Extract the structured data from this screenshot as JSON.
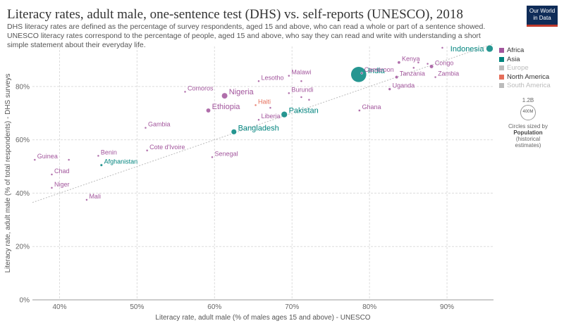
{
  "header": {
    "title": "Literacy rates, adult male, one-sentence test (DHS) vs. self-reports (UNESCO), 2018",
    "subtitle": "DHS literacy rates are defined as the percentage of survey respondents, aged 15 and above, who can read a whole or part of a sentence showed. UNESCO literacy rates correspond to the percentage of people, aged 15 and above, who say they can read and write with understanding a short simple statement about their everyday life.",
    "logo_line1": "Our World",
    "logo_line2": "in Data"
  },
  "legend": {
    "entries": [
      {
        "name": "Africa",
        "color": "#a2559c",
        "dimmed": false
      },
      {
        "name": "Asia",
        "color": "#00847e",
        "dimmed": false
      },
      {
        "name": "Europe",
        "color": "#bbbbbb",
        "dimmed": true
      },
      {
        "name": "North America",
        "color": "#e56e5a",
        "dimmed": false
      },
      {
        "name": "South America",
        "color": "#bbbbbb",
        "dimmed": true
      }
    ],
    "size_value": "1.2B",
    "size_small": "400M",
    "size_note_1": "Circles sized by",
    "size_note_2": "Population",
    "size_note_3": "(historical",
    "size_note_4": "estimates)"
  },
  "chart_data": {
    "type": "scatter",
    "xlabel": "Literacy rate, adult male (% of males ages 15 and above) - UNESCO",
    "ylabel": "Literacy rate, adult male (% of total respondents) - DHS surveys",
    "xlim": [
      36.5,
      96
    ],
    "ylim": [
      0,
      95
    ],
    "x_ticks": [
      "40%",
      "50%",
      "60%",
      "70%",
      "80%",
      "90%"
    ],
    "x_tick_values": [
      40,
      50,
      60,
      70,
      80,
      90
    ],
    "y_ticks": [
      "0%",
      "20%",
      "40%",
      "60%",
      "80%"
    ],
    "y_tick_values": [
      0,
      20,
      40,
      60,
      80
    ],
    "grid": true,
    "legend_position": "right",
    "trendline": {
      "x": [
        36.5,
        96
      ],
      "y": [
        36.5,
        96
      ]
    },
    "colors": {
      "Africa": "#a2559c",
      "Asia": "#00847e",
      "North America": "#e56e5a"
    },
    "points": [
      {
        "label": "Indonesia",
        "x": 95.5,
        "y": 94.2,
        "region": "Asia",
        "pop": 267
      },
      {
        "label": "India",
        "x": 78.6,
        "y": 84.5,
        "region": "Asia",
        "pop": 1353
      },
      {
        "label": "Kenya",
        "x": 83.8,
        "y": 89.0,
        "region": "Africa",
        "pop": 51
      },
      {
        "label": "Congo",
        "x": 88.0,
        "y": 87.5,
        "region": "Africa",
        "pop": 84
      },
      {
        "label": "Cameroon",
        "x": 79.0,
        "y": 85.0,
        "region": "Africa",
        "pop": 25
      },
      {
        "label": "Tanzania",
        "x": 83.5,
        "y": 83.5,
        "region": "Africa",
        "pop": 56
      },
      {
        "label": "Zambia",
        "x": 88.5,
        "y": 83.5,
        "region": "Africa",
        "pop": 17
      },
      {
        "label": "Uganda",
        "x": 82.6,
        "y": 79.0,
        "region": "Africa",
        "pop": 42
      },
      {
        "label": "Malawi",
        "x": 69.6,
        "y": 84.0,
        "region": "Africa",
        "pop": 18
      },
      {
        "label": "Lesotho",
        "x": 65.7,
        "y": 82.0,
        "region": "Africa",
        "pop": 2
      },
      {
        "label": "Burundi",
        "x": 69.6,
        "y": 77.5,
        "region": "Africa",
        "pop": 11
      },
      {
        "label": "Comoros",
        "x": 56.2,
        "y": 78.0,
        "region": "Africa",
        "pop": 1
      },
      {
        "label": "Nigeria",
        "x": 61.3,
        "y": 76.5,
        "region": "Africa",
        "pop": 196
      },
      {
        "label": "Ethiopia",
        "x": 59.2,
        "y": 71.0,
        "region": "Africa",
        "pop": 109
      },
      {
        "label": "Haiti",
        "x": 65.3,
        "y": 73.0,
        "region": "North America",
        "pop": 11
      },
      {
        "label": "Pakistan",
        "x": 69.0,
        "y": 69.5,
        "region": "Asia",
        "pop": 212
      },
      {
        "label": "Ghana",
        "x": 78.7,
        "y": 71.0,
        "region": "Africa",
        "pop": 29
      },
      {
        "label": "Liberia",
        "x": 65.7,
        "y": 67.5,
        "region": "Africa",
        "pop": 5
      },
      {
        "label": "Bangladesh",
        "x": 62.5,
        "y": 63.0,
        "region": "Asia",
        "pop": 161
      },
      {
        "label": "Gambia",
        "x": 51.1,
        "y": 64.5,
        "region": "Africa",
        "pop": 2
      },
      {
        "label": "Cote d'Ivoire",
        "x": 51.3,
        "y": 56.0,
        "region": "Africa",
        "pop": 25
      },
      {
        "label": "Senegal",
        "x": 59.7,
        "y": 53.5,
        "region": "Africa",
        "pop": 16
      },
      {
        "label": "Benin",
        "x": 45.0,
        "y": 54.0,
        "region": "Africa",
        "pop": 11
      },
      {
        "label": "Afghanistan",
        "x": 45.4,
        "y": 50.5,
        "region": "Asia",
        "pop": 37
      },
      {
        "label": "Guinea",
        "x": 36.8,
        "y": 52.5,
        "region": "Africa",
        "pop": 12
      },
      {
        "label": "Chad",
        "x": 39.0,
        "y": 47.0,
        "region": "Africa",
        "pop": 15
      },
      {
        "label": "Niger",
        "x": 39.0,
        "y": 42.0,
        "region": "Africa",
        "pop": 22
      },
      {
        "label": "Mali",
        "x": 43.5,
        "y": 37.5,
        "region": "Africa",
        "pop": 19
      },
      {
        "label": "",
        "x": 41.2,
        "y": 52.5,
        "region": "Africa",
        "pop": 8
      },
      {
        "label": "",
        "x": 89.4,
        "y": 94.5,
        "region": "Africa",
        "pop": 2
      },
      {
        "label": "",
        "x": 85.7,
        "y": 87.0,
        "region": "Africa",
        "pop": 4
      },
      {
        "label": "",
        "x": 86.3,
        "y": 89.0,
        "region": "Africa",
        "pop": 2
      },
      {
        "label": "",
        "x": 87.5,
        "y": 88.5,
        "region": "Africa",
        "pop": 2
      },
      {
        "label": "",
        "x": 71.2,
        "y": 82.0,
        "region": "Africa",
        "pop": 3
      },
      {
        "label": "",
        "x": 67.2,
        "y": 72.0,
        "region": "Africa",
        "pop": 5
      },
      {
        "label": "",
        "x": 71.2,
        "y": 76.0,
        "region": "Africa",
        "pop": 4
      },
      {
        "label": "",
        "x": 72.2,
        "y": 75.0,
        "region": "Africa",
        "pop": 2
      }
    ]
  }
}
